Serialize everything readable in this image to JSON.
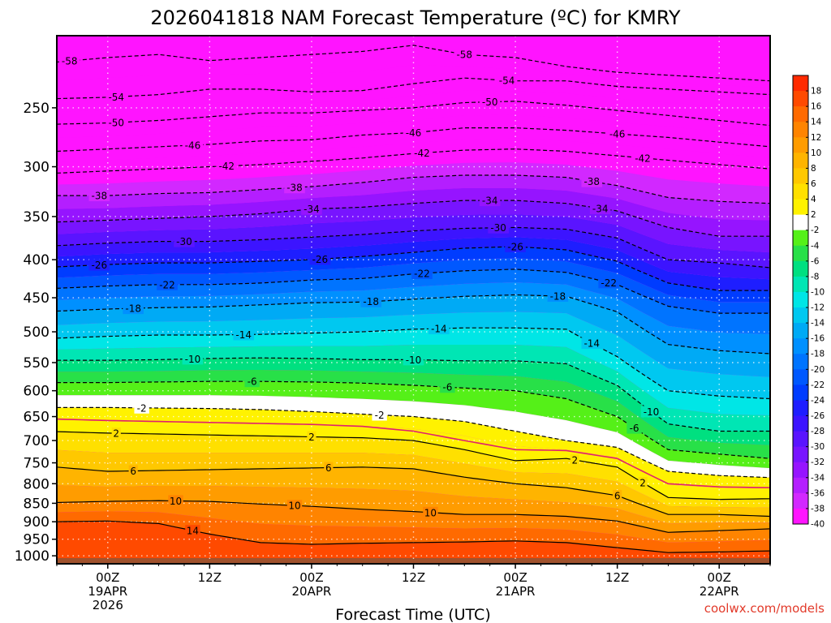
{
  "chart_data": {
    "type": "heatmap",
    "title": "2026041818 NAM Forecast Temperature (ºC) for KMRY",
    "xlabel": "Forecast Time (UTC)",
    "ylabel": "",
    "credit": "coolwx.com/models",
    "x_ticks": [
      {
        "hours": 6,
        "lines": [
          "00Z",
          "19APR",
          "2026"
        ]
      },
      {
        "hours": 18,
        "lines": [
          "12Z"
        ]
      },
      {
        "hours": 30,
        "lines": [
          "00Z",
          "20APR"
        ]
      },
      {
        "hours": 42,
        "lines": [
          "12Z"
        ]
      },
      {
        "hours": 54,
        "lines": [
          "00Z",
          "21APR"
        ]
      },
      {
        "hours": 66,
        "lines": [
          "12Z"
        ]
      },
      {
        "hours": 78,
        "lines": [
          "00Z",
          "22APR"
        ]
      }
    ],
    "xlim_hours": [
      0,
      84
    ],
    "y_axis": {
      "quantity": "pressure (hPa)",
      "scale": "log",
      "inverted": true,
      "ylim": [
        1025,
        200
      ]
    },
    "y_ticks": [
      250,
      300,
      350,
      400,
      450,
      500,
      550,
      600,
      650,
      700,
      750,
      800,
      850,
      900,
      950,
      1000
    ],
    "grid": true,
    "colorbar": {
      "labels": [
        "18",
        "16",
        "14",
        "12",
        "10",
        "8",
        "6",
        "4",
        "2",
        "-2",
        "-4",
        "-6",
        "-8",
        "-10",
        "-12",
        "-14",
        "-16",
        "-18",
        "-20",
        "-22",
        "-24",
        "-26",
        "-28",
        "-30",
        "-32",
        "-34",
        "-36",
        "-38",
        "-40"
      ],
      "colors": [
        "#ff2a00",
        "#ff4a00",
        "#ff6a00",
        "#ff8400",
        "#ff9c00",
        "#ffb400",
        "#ffc800",
        "#ffe000",
        "#fff200",
        "#ffffff",
        "#55f018",
        "#28e048",
        "#00e080",
        "#00e6b4",
        "#00e6e6",
        "#00c8f0",
        "#00aaf5",
        "#0090ff",
        "#0074ff",
        "#0058ff",
        "#003cff",
        "#1e1eff",
        "#3c14ff",
        "#5a14ff",
        "#7814ff",
        "#9614ff",
        "#b41eff",
        "#d228ff",
        "#ff14ff"
      ]
    },
    "profile_hours": [
      0,
      6,
      12,
      18,
      24,
      30,
      36,
      42,
      48,
      54,
      60,
      66,
      72,
      78,
      84
    ],
    "isotherms_hPa": [
      {
        "temp": -58,
        "p": [
          217,
          214,
          212,
          216,
          214,
          212,
          210,
          206,
          212,
          214,
          220,
          224,
          226,
          228,
          230
        ]
      },
      {
        "temp": -54,
        "p": [
          243,
          242,
          240,
          236,
          236,
          238,
          237,
          232,
          228,
          230,
          230,
          234,
          236,
          238,
          240
        ]
      },
      {
        "temp": -50,
        "p": [
          263,
          262,
          260,
          257,
          254,
          254,
          252,
          250,
          246,
          245,
          248,
          252,
          256,
          260,
          264
        ]
      },
      {
        "temp": -46,
        "p": [
          286,
          284,
          282,
          280,
          277,
          276,
          272,
          270,
          266,
          266,
          268,
          271,
          274,
          278,
          282
        ]
      },
      {
        "temp": -42,
        "p": [
          306,
          304,
          302,
          300,
          298,
          295,
          292,
          288,
          285,
          284,
          286,
          290,
          294,
          298,
          302
        ]
      },
      {
        "temp": -38,
        "p": [
          328,
          328,
          326,
          325,
          322,
          319,
          315,
          310,
          308,
          308,
          310,
          318,
          330,
          334,
          336
        ]
      },
      {
        "temp": -34,
        "p": [
          356,
          354,
          352,
          350,
          347,
          342,
          340,
          336,
          333,
          333,
          336,
          344,
          362,
          372,
          372
        ]
      },
      {
        "temp": -30,
        "p": [
          383,
          380,
          378,
          378,
          376,
          373,
          370,
          366,
          363,
          362,
          364,
          374,
          400,
          404,
          410
        ]
      },
      {
        "temp": -26,
        "p": [
          409,
          406,
          404,
          404,
          402,
          400,
          396,
          391,
          386,
          384,
          388,
          402,
          430,
          440,
          440
        ]
      },
      {
        "temp": -22,
        "p": [
          437,
          434,
          432,
          432,
          430,
          426,
          424,
          418,
          414,
          412,
          416,
          432,
          462,
          472,
          472
        ]
      },
      {
        "temp": -18,
        "p": [
          469,
          466,
          464,
          463,
          460,
          457,
          456,
          452,
          448,
          446,
          448,
          470,
          520,
          530,
          535
        ]
      },
      {
        "temp": -14,
        "p": [
          510,
          507,
          505,
          505,
          504,
          502,
          500,
          496,
          494,
          494,
          496,
          540,
          600,
          610,
          615
        ]
      },
      {
        "temp": -10,
        "p": [
          546,
          546,
          545,
          543,
          542,
          543,
          545,
          545,
          547,
          547,
          552,
          590,
          665,
          680,
          680
        ]
      },
      {
        "temp": -6,
        "p": [
          585,
          585,
          584,
          583,
          583,
          584,
          586,
          590,
          595,
          600,
          615,
          650,
          720,
          730,
          740
        ]
      },
      {
        "temp": -2,
        "p": [
          632,
          632,
          633,
          634,
          636,
          640,
          645,
          650,
          660,
          680,
          700,
          715,
          770,
          780,
          785
        ]
      },
      {
        "temp": 2,
        "p": [
          681,
          684,
          686,
          688,
          690,
          692,
          694,
          700,
          720,
          745,
          740,
          760,
          835,
          840,
          838
        ]
      },
      {
        "temp": 6,
        "p": [
          760,
          770,
          768,
          766,
          764,
          762,
          760,
          764,
          784,
          800,
          810,
          830,
          880,
          880,
          885
        ]
      },
      {
        "temp": 10,
        "p": [
          848,
          845,
          843,
          845,
          852,
          858,
          866,
          872,
          880,
          880,
          885,
          898,
          930,
          925,
          920
        ]
      },
      {
        "temp": 14,
        "p": [
          900,
          898,
          905,
          935,
          960,
          965,
          962,
          960,
          958,
          955,
          960,
          975,
          990,
          988,
          985
        ]
      }
    ],
    "isotherm_labels": [
      {
        "temp": -58,
        "positions": [
          1.5,
          48
        ]
      },
      {
        "temp": -54,
        "positions": [
          7,
          53
        ]
      },
      {
        "temp": -50,
        "positions": [
          7,
          51
        ]
      },
      {
        "temp": -46,
        "positions": [
          16,
          42,
          66
        ]
      },
      {
        "temp": -42,
        "positions": [
          20,
          43,
          69
        ]
      },
      {
        "temp": -38,
        "positions": [
          5,
          28,
          63
        ]
      },
      {
        "temp": -34,
        "positions": [
          30,
          51,
          64
        ]
      },
      {
        "temp": -30,
        "positions": [
          15,
          52
        ]
      },
      {
        "temp": -26,
        "positions": [
          5,
          31,
          54
        ]
      },
      {
        "temp": -22,
        "positions": [
          13,
          43,
          65
        ]
      },
      {
        "temp": -18,
        "positions": [
          9,
          37,
          59
        ]
      },
      {
        "temp": -14,
        "positions": [
          22,
          45,
          63
        ]
      },
      {
        "temp": -10,
        "positions": [
          16,
          42,
          70
        ]
      },
      {
        "temp": -6,
        "positions": [
          23,
          46,
          68
        ]
      },
      {
        "temp": -2,
        "positions": [
          10,
          38
        ]
      },
      {
        "temp": 2,
        "positions": [
          7,
          30,
          61,
          69
        ]
      },
      {
        "temp": 6,
        "positions": [
          9,
          32,
          66
        ]
      },
      {
        "temp": 10,
        "positions": [
          14,
          44,
          28
        ]
      },
      {
        "temp": 14,
        "positions": [
          16
        ]
      }
    ],
    "freezing_line": {
      "temp": 0,
      "p": [
        655,
        658,
        660,
        662,
        664,
        666,
        670,
        680,
        700,
        720,
        722,
        740,
        800,
        808,
        810
      ],
      "color": "#e0206e"
    },
    "ground": {
      "pressure": 1007,
      "color": "#a0522d"
    }
  }
}
